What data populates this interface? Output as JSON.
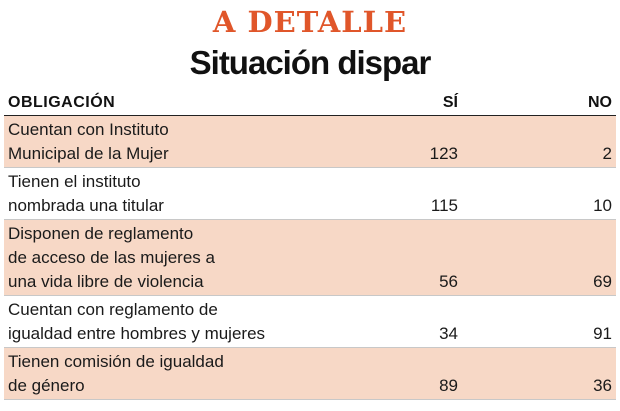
{
  "header": {
    "kicker": "A DETALLE",
    "title": "Situación dispar"
  },
  "colors": {
    "kicker": "#e0562a",
    "row_shade": "#f7d8c6"
  },
  "table": {
    "columns": [
      "OBLIGACIÓN",
      "SÍ",
      "NO"
    ],
    "rows": [
      {
        "label": "Cuentan con Instituto\nMunicipal de la Mujer",
        "yes": "123",
        "no": "2"
      },
      {
        "label": "Tienen el instituto\nnombrada una titular",
        "yes": "115",
        "no": "10"
      },
      {
        "label": "Disponen de reglamento\nde acceso de las mujeres a\nuna vida libre de violencia",
        "yes": "56",
        "no": "69"
      },
      {
        "label": "Cuentan con reglamento de\nigualdad entre hombres y mujeres",
        "yes": "34",
        "no": "91"
      },
      {
        "label": "Tienen comisión de igualdad\nde género",
        "yes": "89",
        "no": "36"
      }
    ]
  }
}
